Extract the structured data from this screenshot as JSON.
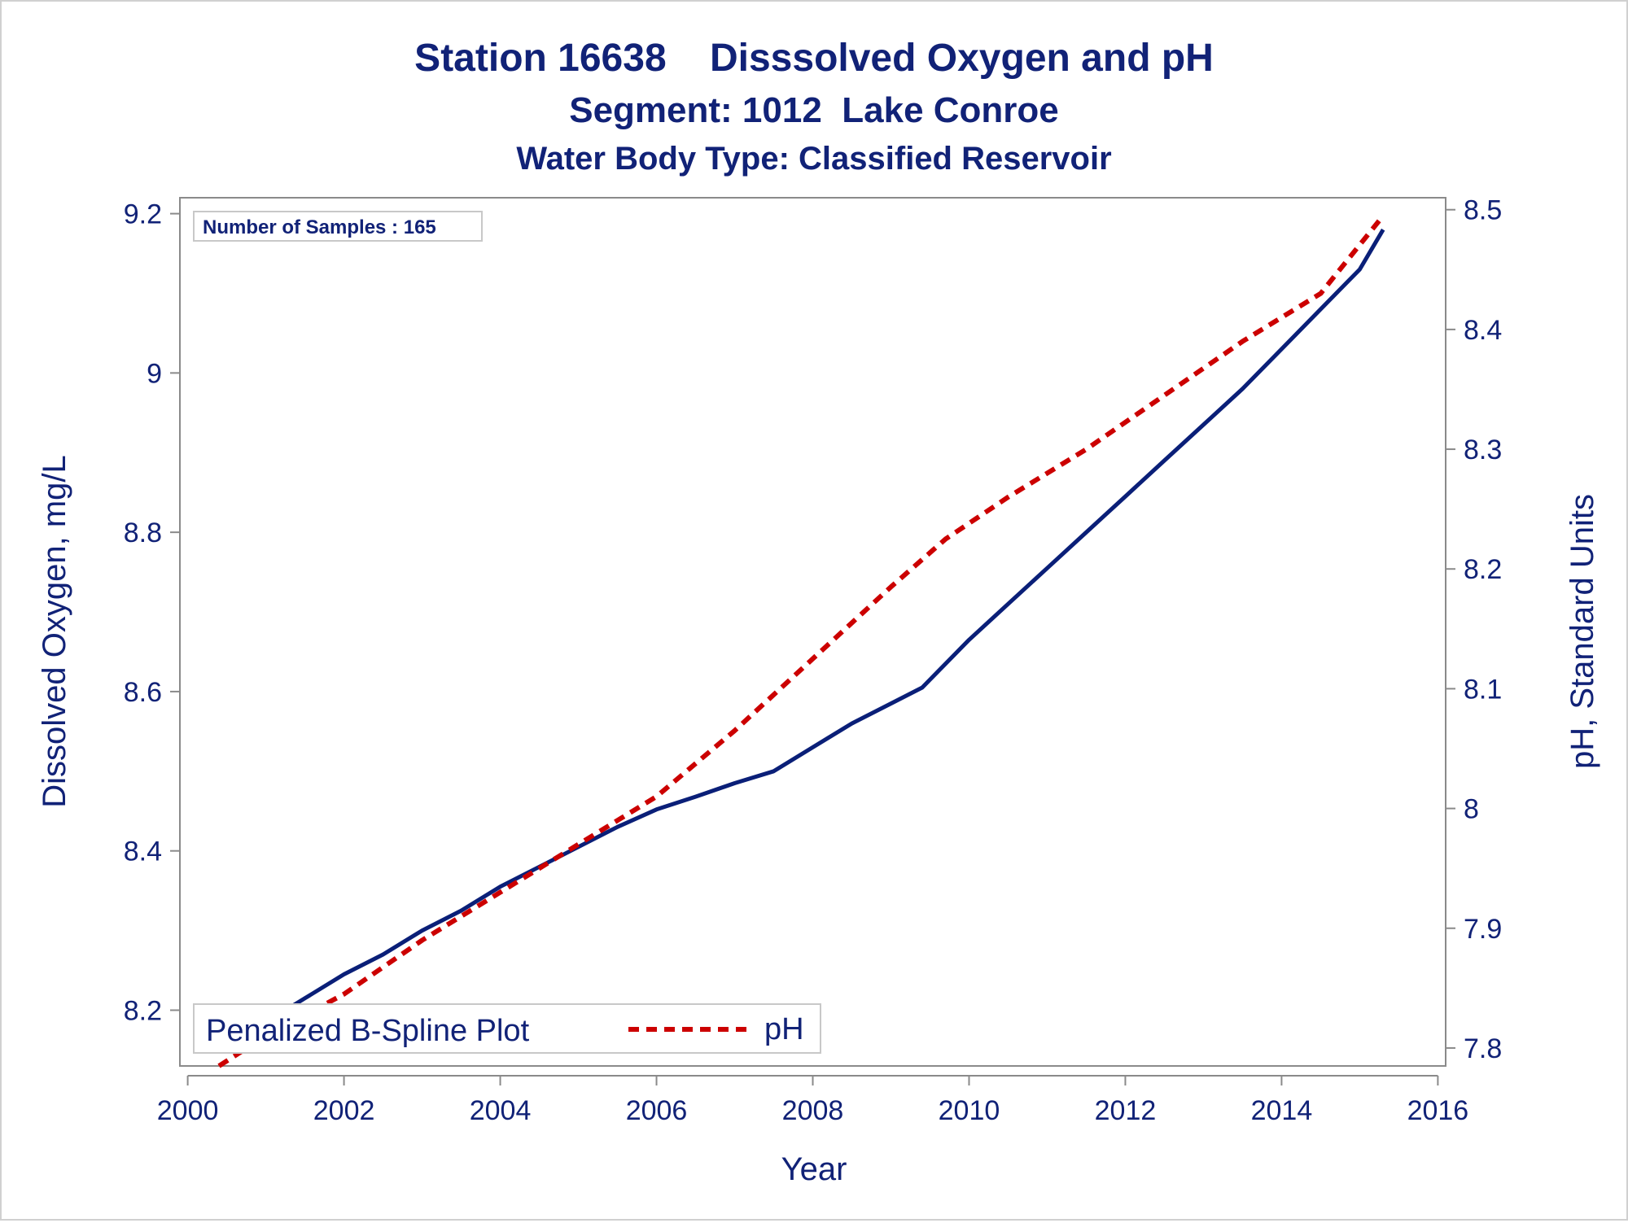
{
  "titles": {
    "line1": "Station 16638    Disssolved Oxygen and pH",
    "line2": "Segment: 1012  Lake Conroe",
    "line3": "Water Body Type: Classified Reservoir"
  },
  "inset_label": "Number of Samples : 165",
  "legend": {
    "title": "Penalized B-Spline Plot",
    "entry": "pH"
  },
  "colors": {
    "do_line": "#0a1f78",
    "ph_line": "#cc0000",
    "text": "#112277",
    "axis": "#8a8a8a"
  },
  "chart_data": {
    "type": "line",
    "title": "Station 16638    Disssolved Oxygen and pH",
    "xlabel": "Year",
    "ylabel": "Dissolved Oxygen, mg/L",
    "y2label": "pH, Standard Units",
    "xlim": [
      2000,
      2016
    ],
    "ylim": [
      8.13,
      9.22
    ],
    "y2lim": [
      7.785,
      8.51
    ],
    "xticks": [
      2000,
      2002,
      2004,
      2006,
      2008,
      2010,
      2012,
      2014,
      2016
    ],
    "yticks": [
      8.2,
      8.4,
      8.6,
      8.8,
      9,
      9.2
    ],
    "y2ticks": [
      7.8,
      7.9,
      8,
      8.1,
      8.2,
      8.3,
      8.4,
      8.5
    ],
    "series": [
      {
        "name": "",
        "axis": "left",
        "style": "solid",
        "x": [
          2000.5,
          2001.0,
          2001.5,
          2002.0,
          2002.5,
          2003.0,
          2003.5,
          2004.0,
          2004.5,
          2005.0,
          2005.5,
          2006.0,
          2006.5,
          2007.0,
          2007.5,
          2008.0,
          2008.5,
          2009.0,
          2009.4,
          2010.0,
          2010.5,
          2011.0,
          2011.5,
          2012.0,
          2012.5,
          2013.0,
          2013.5,
          2014.0,
          2014.5,
          2015.0,
          2015.3
        ],
        "values": [
          8.15,
          8.185,
          8.215,
          8.245,
          8.27,
          8.3,
          8.325,
          8.355,
          8.38,
          8.405,
          8.43,
          8.452,
          8.468,
          8.485,
          8.5,
          8.53,
          8.56,
          8.585,
          8.605,
          8.665,
          8.71,
          8.755,
          8.8,
          8.845,
          8.89,
          8.935,
          8.98,
          9.03,
          9.08,
          9.13,
          9.18
        ]
      },
      {
        "name": "pH",
        "axis": "right",
        "style": "dashed",
        "x": [
          2000.4,
          2001.0,
          2002.0,
          2003.0,
          2004.0,
          2005.0,
          2006.0,
          2007.0,
          2008.0,
          2009.0,
          2009.7,
          2010.5,
          2011.5,
          2012.5,
          2013.5,
          2014.5,
          2015.3
        ],
        "values": [
          7.785,
          7.81,
          7.845,
          7.89,
          7.93,
          7.97,
          8.01,
          8.065,
          8.125,
          8.185,
          8.225,
          8.26,
          8.3,
          8.345,
          8.39,
          8.43,
          8.495
        ]
      }
    ],
    "grid": false,
    "legend_position": "bottom-left"
  }
}
